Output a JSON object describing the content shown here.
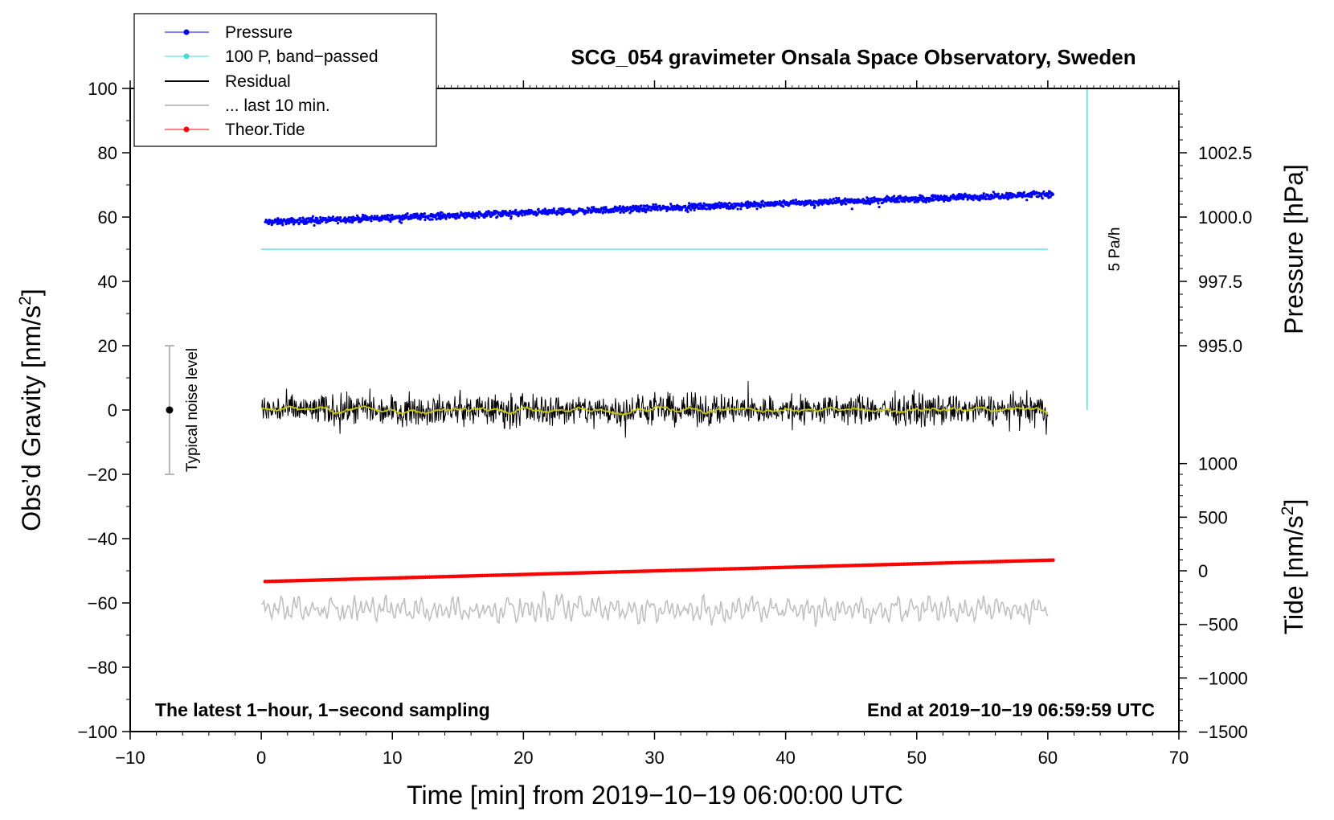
{
  "chart_data": {
    "type": "line",
    "title": "SCG_054 gravimeter Onsala Space Observatory, Sweden",
    "xlabel": "Time [min] from 2019−10−19 06:00:00 UTC",
    "xlim": [
      -10,
      70
    ],
    "x_ticks": [
      "−10",
      "0",
      "10",
      "20",
      "30",
      "40",
      "50",
      "60",
      "70"
    ],
    "grid": false,
    "legend_position": "top-left",
    "left_axis": {
      "label": "Obs’d Gravity [nm/s",
      "label_sup": "2",
      "label_end": "]",
      "ylim": [
        -100,
        100
      ],
      "ticks": [
        "100",
        "80",
        "60",
        "40",
        "20",
        "0",
        "−20",
        "−40",
        "−60",
        "−80",
        "−100"
      ]
    },
    "pressure_axis": {
      "label": "Pressure [hPa]",
      "ticks": [
        "1002.5",
        "1000.0",
        "997.5",
        "995.0"
      ],
      "tick_values": [
        1002.5,
        1000.0,
        997.5,
        995.0
      ]
    },
    "tide_axis": {
      "label": "Tide [nm/s",
      "label_sup": "2",
      "label_end": "]",
      "ticks": [
        "1000",
        "500",
        "0",
        "−500",
        "−1000",
        "−1500"
      ],
      "tick_values": [
        1000,
        500,
        0,
        -500,
        -1000,
        -1500
      ]
    },
    "series": [
      {
        "name": "Pressure",
        "color": "#0000ff",
        "style": "dots",
        "x_range": [
          0.3,
          60.4
        ],
        "start_hpa": 999.8,
        "end_hpa": 1000.9
      },
      {
        "name": "100 P, band−passed",
        "color": "#40e0d0",
        "style": "line",
        "x_range": [
          0.0,
          60.0
        ],
        "value": 50
      },
      {
        "name": "Residual",
        "color": "#000000",
        "style": "line",
        "x_range": [
          0.0,
          60.0
        ],
        "mean": 0,
        "noise_amplitude": 4
      },
      {
        "name": "... last 10 min.",
        "color": "#c0c0c0",
        "style": "line",
        "x_range": [
          0.0,
          60.0
        ],
        "mean": -62,
        "amplitude": 4
      },
      {
        "name": "Theor.Tide",
        "color": "#ff0000",
        "style": "dots",
        "x_range": [
          0.3,
          60.4
        ],
        "start_nms2": -100,
        "end_nms2": 100
      }
    ],
    "residual_smoothed_color": "#cccc00",
    "noise_bar": {
      "x": -7,
      "center": 0,
      "half_range": 20,
      "label": "Typical noise level"
    },
    "scale_bar": {
      "x": 63,
      "from": 0,
      "to": 100,
      "label": "5 Pa/h",
      "color": "#40e0d0"
    },
    "annotations": {
      "bottom_left": "The latest 1−hour, 1−second sampling",
      "bottom_right": "End at 2019−10−19 06:59:59 UTC"
    }
  }
}
